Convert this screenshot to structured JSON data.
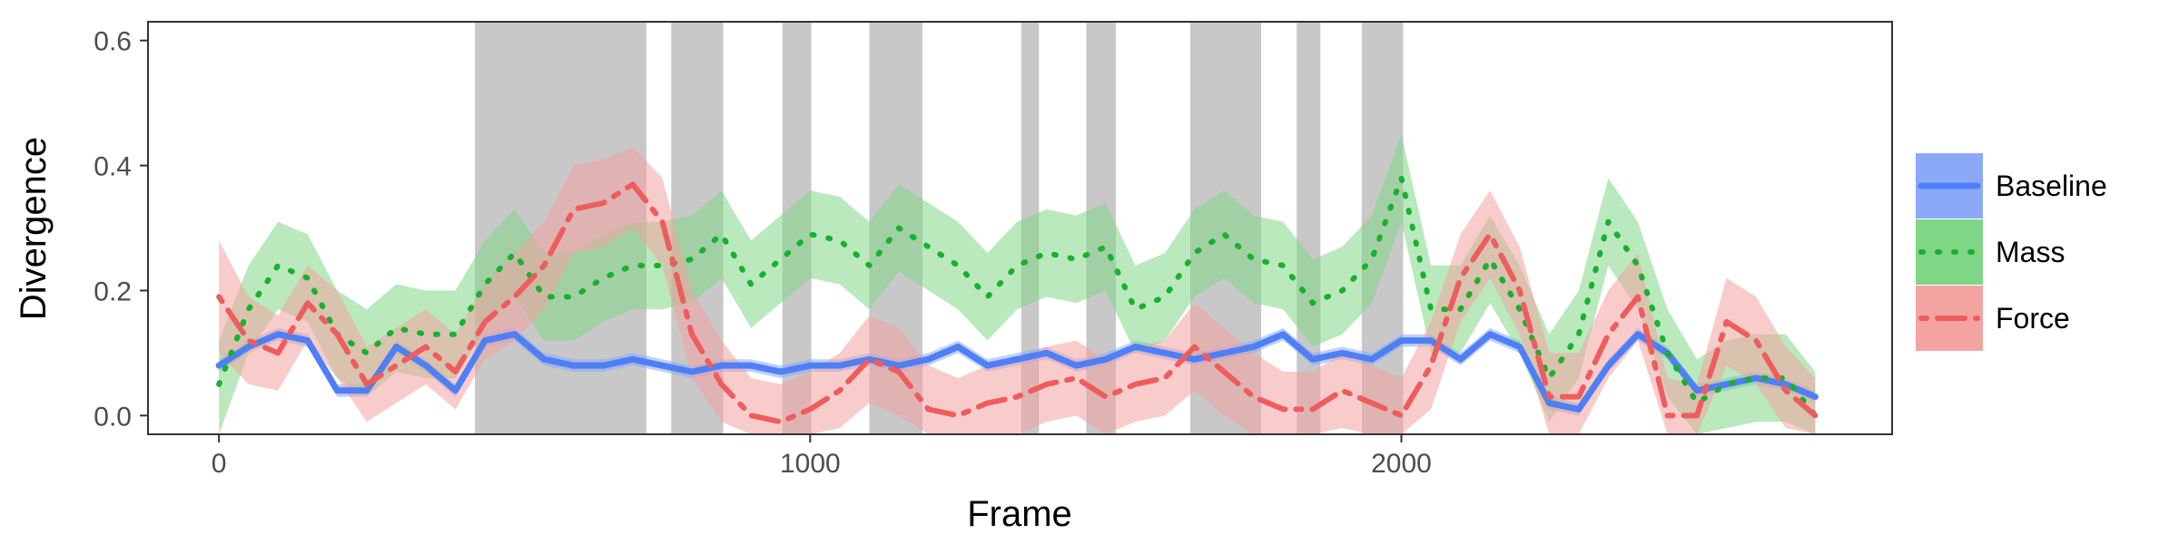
{
  "chart_data": {
    "type": "line",
    "title": "",
    "xlabel": "Frame",
    "ylabel": "Divergence",
    "xlim": [
      -120,
      2830
    ],
    "ylim": [
      -0.03,
      0.63
    ],
    "x_ticks": [
      0,
      1000,
      2000
    ],
    "x_tick_labels": [
      "0",
      "1000",
      "2000"
    ],
    "y_ticks": [
      0.0,
      0.2,
      0.4,
      0.6
    ],
    "y_tick_labels": [
      "0.0",
      "0.2",
      "0.4",
      "0.6"
    ],
    "grid": false,
    "legend": "right",
    "shaded_frame_ranges": [
      [
        433,
        723
      ],
      [
        765,
        853
      ],
      [
        953,
        1002
      ],
      [
        1100,
        1190
      ],
      [
        1357,
        1387
      ],
      [
        1467,
        1517
      ],
      [
        1643,
        1763
      ],
      [
        1823,
        1863
      ],
      [
        1933,
        2003
      ]
    ],
    "x": [
      0,
      50,
      100,
      150,
      200,
      250,
      300,
      350,
      400,
      450,
      500,
      550,
      600,
      650,
      700,
      750,
      800,
      850,
      900,
      950,
      1000,
      1050,
      1100,
      1150,
      1200,
      1250,
      1300,
      1350,
      1400,
      1450,
      1500,
      1550,
      1600,
      1650,
      1700,
      1750,
      1800,
      1850,
      1900,
      1950,
      2000,
      2050,
      2100,
      2150,
      2200,
      2250,
      2300,
      2350,
      2400,
      2450,
      2500,
      2550,
      2600,
      2650,
      2700
    ],
    "series": [
      {
        "name": "Baseline",
        "color": "#4f7ff5",
        "band_color": "#8aa9f7",
        "dash": "solid",
        "values": [
          0.08,
          0.11,
          0.13,
          0.12,
          0.04,
          0.04,
          0.11,
          0.08,
          0.04,
          0.12,
          0.13,
          0.09,
          0.08,
          0.08,
          0.09,
          0.08,
          0.07,
          0.08,
          0.08,
          0.07,
          0.08,
          0.08,
          0.09,
          0.08,
          0.09,
          0.11,
          0.08,
          0.09,
          0.1,
          0.08,
          0.09,
          0.11,
          0.1,
          0.09,
          0.1,
          0.11,
          0.13,
          0.09,
          0.1,
          0.09,
          0.12,
          0.12,
          0.09,
          0.13,
          0.11,
          0.02,
          0.01,
          0.08,
          0.13,
          0.1,
          0.04,
          0.05,
          0.06,
          0.05,
          0.03
        ],
        "lower": [
          0.07,
          0.1,
          0.12,
          0.11,
          0.03,
          0.03,
          0.1,
          0.07,
          0.03,
          0.11,
          0.12,
          0.08,
          0.07,
          0.07,
          0.08,
          0.07,
          0.06,
          0.07,
          0.07,
          0.06,
          0.07,
          0.07,
          0.08,
          0.07,
          0.08,
          0.1,
          0.07,
          0.08,
          0.09,
          0.07,
          0.08,
          0.1,
          0.09,
          0.08,
          0.09,
          0.1,
          0.12,
          0.08,
          0.09,
          0.08,
          0.11,
          0.11,
          0.08,
          0.12,
          0.1,
          0.01,
          0.0,
          0.07,
          0.12,
          0.09,
          0.03,
          0.04,
          0.05,
          0.04,
          0.02
        ],
        "upper": [
          0.09,
          0.12,
          0.14,
          0.13,
          0.05,
          0.05,
          0.12,
          0.09,
          0.05,
          0.13,
          0.14,
          0.1,
          0.09,
          0.09,
          0.1,
          0.09,
          0.08,
          0.09,
          0.09,
          0.08,
          0.09,
          0.09,
          0.1,
          0.09,
          0.1,
          0.12,
          0.09,
          0.1,
          0.11,
          0.09,
          0.1,
          0.12,
          0.11,
          0.1,
          0.11,
          0.12,
          0.14,
          0.1,
          0.11,
          0.1,
          0.13,
          0.13,
          0.1,
          0.14,
          0.12,
          0.03,
          0.02,
          0.09,
          0.14,
          0.11,
          0.05,
          0.06,
          0.07,
          0.06,
          0.04
        ]
      },
      {
        "name": "Mass",
        "color": "#19b030",
        "band_color": "#7fd785",
        "dash": "dotted",
        "values": [
          0.05,
          0.17,
          0.24,
          0.22,
          0.13,
          0.1,
          0.14,
          0.13,
          0.13,
          0.21,
          0.26,
          0.19,
          0.19,
          0.22,
          0.24,
          0.24,
          0.25,
          0.29,
          0.21,
          0.25,
          0.29,
          0.28,
          0.24,
          0.3,
          0.27,
          0.24,
          0.19,
          0.24,
          0.26,
          0.25,
          0.27,
          0.17,
          0.19,
          0.26,
          0.29,
          0.25,
          0.24,
          0.18,
          0.2,
          0.25,
          0.38,
          0.17,
          0.17,
          0.25,
          0.17,
          0.06,
          0.13,
          0.31,
          0.24,
          0.1,
          0.02,
          0.05,
          0.06,
          0.06,
          0.0
        ],
        "lower": [
          -0.03,
          0.1,
          0.17,
          0.15,
          0.06,
          0.03,
          0.07,
          0.06,
          0.06,
          0.14,
          0.19,
          0.12,
          0.12,
          0.15,
          0.17,
          0.17,
          0.18,
          0.22,
          0.14,
          0.18,
          0.22,
          0.21,
          0.17,
          0.23,
          0.2,
          0.17,
          0.12,
          0.17,
          0.19,
          0.18,
          0.2,
          0.1,
          0.12,
          0.19,
          0.22,
          0.18,
          0.17,
          0.11,
          0.13,
          0.18,
          0.31,
          0.1,
          0.1,
          0.18,
          0.1,
          -0.01,
          0.06,
          0.24,
          0.17,
          0.03,
          -0.03,
          -0.02,
          -0.01,
          -0.01,
          -0.03
        ],
        "upper": [
          0.12,
          0.24,
          0.31,
          0.29,
          0.2,
          0.17,
          0.21,
          0.2,
          0.2,
          0.28,
          0.33,
          0.26,
          0.26,
          0.29,
          0.31,
          0.31,
          0.32,
          0.36,
          0.28,
          0.32,
          0.36,
          0.35,
          0.31,
          0.37,
          0.34,
          0.31,
          0.26,
          0.31,
          0.33,
          0.32,
          0.34,
          0.24,
          0.26,
          0.33,
          0.36,
          0.32,
          0.31,
          0.25,
          0.27,
          0.32,
          0.45,
          0.24,
          0.24,
          0.32,
          0.24,
          0.13,
          0.2,
          0.38,
          0.31,
          0.17,
          0.09,
          0.12,
          0.13,
          0.13,
          0.07
        ]
      },
      {
        "name": "Force",
        "color": "#ee5d5d",
        "band_color": "#f4a3a3",
        "dash": "dotdash",
        "values": [
          0.19,
          0.12,
          0.1,
          0.18,
          0.13,
          0.05,
          0.08,
          0.11,
          0.07,
          0.15,
          0.19,
          0.24,
          0.33,
          0.34,
          0.37,
          0.31,
          0.13,
          0.05,
          0.0,
          -0.01,
          0.01,
          0.04,
          0.09,
          0.07,
          0.01,
          0.0,
          0.02,
          0.03,
          0.05,
          0.06,
          0.03,
          0.05,
          0.06,
          0.11,
          0.07,
          0.03,
          0.01,
          0.01,
          0.04,
          0.02,
          0.0,
          0.08,
          0.22,
          0.29,
          0.2,
          0.03,
          0.03,
          0.13,
          0.19,
          0.0,
          0.0,
          0.15,
          0.12,
          0.04,
          0.0
        ],
        "lower": [
          0.1,
          0.05,
          0.04,
          0.12,
          0.06,
          -0.01,
          0.02,
          0.05,
          0.01,
          0.09,
          0.12,
          0.17,
          0.26,
          0.27,
          0.3,
          0.24,
          0.06,
          -0.01,
          -0.03,
          -0.03,
          -0.03,
          -0.02,
          0.02,
          0.0,
          -0.03,
          -0.03,
          -0.03,
          -0.03,
          -0.01,
          0.0,
          -0.03,
          -0.01,
          0.0,
          0.04,
          0.0,
          -0.03,
          -0.03,
          -0.03,
          -0.02,
          -0.03,
          -0.03,
          0.01,
          0.15,
          0.22,
          0.13,
          -0.03,
          -0.03,
          0.06,
          0.12,
          -0.03,
          -0.03,
          0.08,
          0.05,
          -0.02,
          -0.03
        ],
        "upper": [
          0.28,
          0.19,
          0.16,
          0.24,
          0.2,
          0.11,
          0.14,
          0.17,
          0.13,
          0.21,
          0.26,
          0.31,
          0.4,
          0.41,
          0.43,
          0.38,
          0.2,
          0.12,
          0.06,
          0.05,
          0.07,
          0.1,
          0.16,
          0.14,
          0.08,
          0.06,
          0.08,
          0.09,
          0.11,
          0.12,
          0.09,
          0.11,
          0.12,
          0.18,
          0.14,
          0.1,
          0.07,
          0.07,
          0.1,
          0.08,
          0.06,
          0.15,
          0.29,
          0.36,
          0.27,
          0.1,
          0.1,
          0.2,
          0.26,
          0.06,
          0.05,
          0.22,
          0.19,
          0.11,
          0.06
        ]
      }
    ]
  }
}
